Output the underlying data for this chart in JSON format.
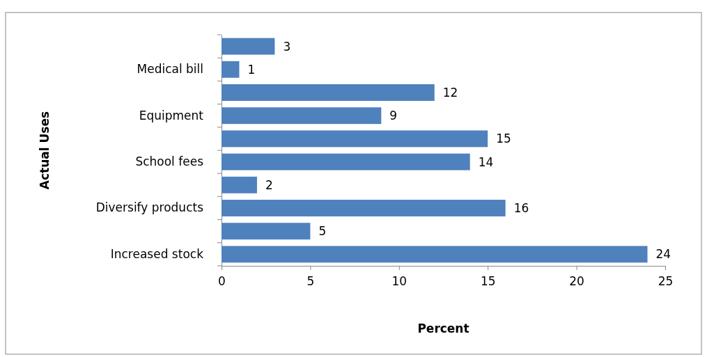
{
  "chart_data": {
    "type": "bar",
    "orientation": "horizontal",
    "xlabel": "Percent",
    "ylabel": "Actual Uses",
    "categories": [
      null,
      "Medical bill",
      null,
      "Equipment",
      null,
      "School fees",
      null,
      "Diversify products",
      null,
      "Increased stock"
    ],
    "values": [
      3,
      1,
      12,
      9,
      15,
      14,
      2,
      16,
      5,
      24
    ],
    "color": "#4f81bd",
    "xlim": [
      0,
      25
    ],
    "xticks": [
      0,
      5,
      10,
      15,
      20,
      25
    ],
    "grid": false,
    "data_labels": true
  }
}
